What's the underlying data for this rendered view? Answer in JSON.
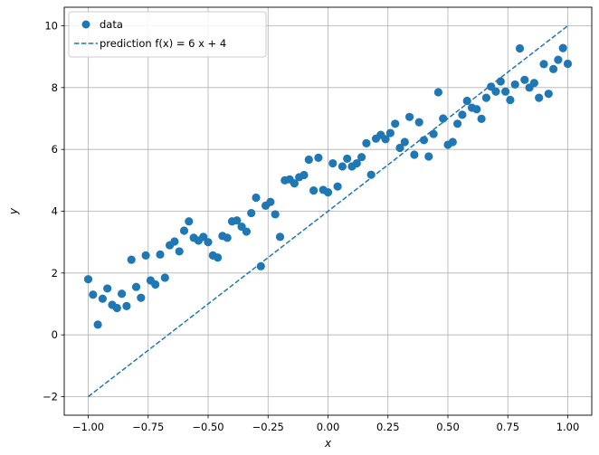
{
  "chart_data": {
    "type": "scatter",
    "xlabel": "x",
    "ylabel": "y",
    "xlim": [
      -1.1,
      1.1
    ],
    "ylim": [
      -2.6,
      10.6
    ],
    "xticks": [
      -1.0,
      -0.75,
      -0.5,
      -0.25,
      0.0,
      0.25,
      0.5,
      0.75,
      1.0
    ],
    "xtick_labels": [
      "−1.00",
      "−0.75",
      "−0.50",
      "−0.25",
      "0.00",
      "0.25",
      "0.50",
      "0.75",
      "1.00"
    ],
    "yticks": [
      -2,
      0,
      2,
      4,
      6,
      8,
      10
    ],
    "ytick_labels": [
      "−2",
      "0",
      "2",
      "4",
      "6",
      "8",
      "10"
    ],
    "grid": true,
    "legend_position": "top-left",
    "colors": {
      "series": "#1f77b4",
      "grid": "#b0b0b0"
    },
    "series": [
      {
        "name": "data",
        "kind": "scatter",
        "x": [
          -1.0,
          -0.98,
          -0.96,
          -0.94,
          -0.92,
          -0.9,
          -0.88,
          -0.86,
          -0.84,
          -0.82,
          -0.8,
          -0.78,
          -0.76,
          -0.74,
          -0.72,
          -0.7,
          -0.68,
          -0.66,
          -0.64,
          -0.62,
          -0.6,
          -0.58,
          -0.56,
          -0.54,
          -0.52,
          -0.5,
          -0.48,
          -0.46,
          -0.44,
          -0.42,
          -0.4,
          -0.38,
          -0.36,
          -0.34,
          -0.32,
          -0.3,
          -0.28,
          -0.26,
          -0.24,
          -0.22,
          -0.2,
          -0.18,
          -0.16,
          -0.14,
          -0.12,
          -0.1,
          -0.08,
          -0.06,
          -0.04,
          -0.02,
          0.0,
          0.02,
          0.04,
          0.06,
          0.08,
          0.1,
          0.12,
          0.14,
          0.16,
          0.18,
          0.2,
          0.22,
          0.24,
          0.26,
          0.28,
          0.3,
          0.32,
          0.34,
          0.36,
          0.38,
          0.4,
          0.42,
          0.44,
          0.46,
          0.48,
          0.5,
          0.52,
          0.54,
          0.56,
          0.58,
          0.6,
          0.62,
          0.64,
          0.66,
          0.68,
          0.7,
          0.72,
          0.74,
          0.76,
          0.78,
          0.8,
          0.82,
          0.84,
          0.86,
          0.88,
          0.9,
          0.92,
          0.94,
          0.96,
          0.98,
          1.0
        ],
        "y": [
          1.8,
          1.3,
          0.33,
          1.17,
          1.5,
          0.97,
          0.87,
          1.33,
          0.93,
          2.43,
          1.55,
          1.2,
          2.57,
          1.76,
          1.63,
          2.6,
          1.85,
          2.9,
          3.02,
          2.7,
          3.37,
          3.67,
          3.14,
          3.05,
          3.17,
          3.0,
          2.57,
          2.5,
          3.2,
          3.14,
          3.67,
          3.7,
          3.5,
          3.34,
          3.94,
          4.44,
          2.22,
          4.18,
          4.3,
          3.9,
          3.17,
          5.0,
          5.03,
          4.9,
          5.1,
          5.17,
          5.67,
          4.67,
          5.73,
          4.69,
          4.61,
          5.55,
          4.8,
          5.45,
          5.7,
          5.45,
          5.55,
          5.75,
          6.2,
          5.18,
          6.35,
          6.47,
          6.33,
          6.53,
          6.83,
          6.05,
          6.24,
          7.05,
          5.83,
          6.88,
          6.3,
          5.77,
          6.5,
          7.85,
          7.0,
          6.15,
          6.24,
          6.83,
          7.12,
          7.57,
          7.35,
          7.3,
          6.99,
          7.67,
          8.03,
          7.87,
          8.2,
          7.87,
          7.6,
          8.1,
          9.27,
          8.25,
          8.0,
          8.15,
          7.67,
          8.76,
          7.8,
          8.6,
          8.9,
          9.28,
          8.77
        ]
      },
      {
        "name": "prediction f(x) = 6 x + 4",
        "kind": "line",
        "style": "dashed",
        "x": [
          -1.0,
          1.0
        ],
        "y": [
          -2.0,
          10.0
        ]
      }
    ]
  }
}
